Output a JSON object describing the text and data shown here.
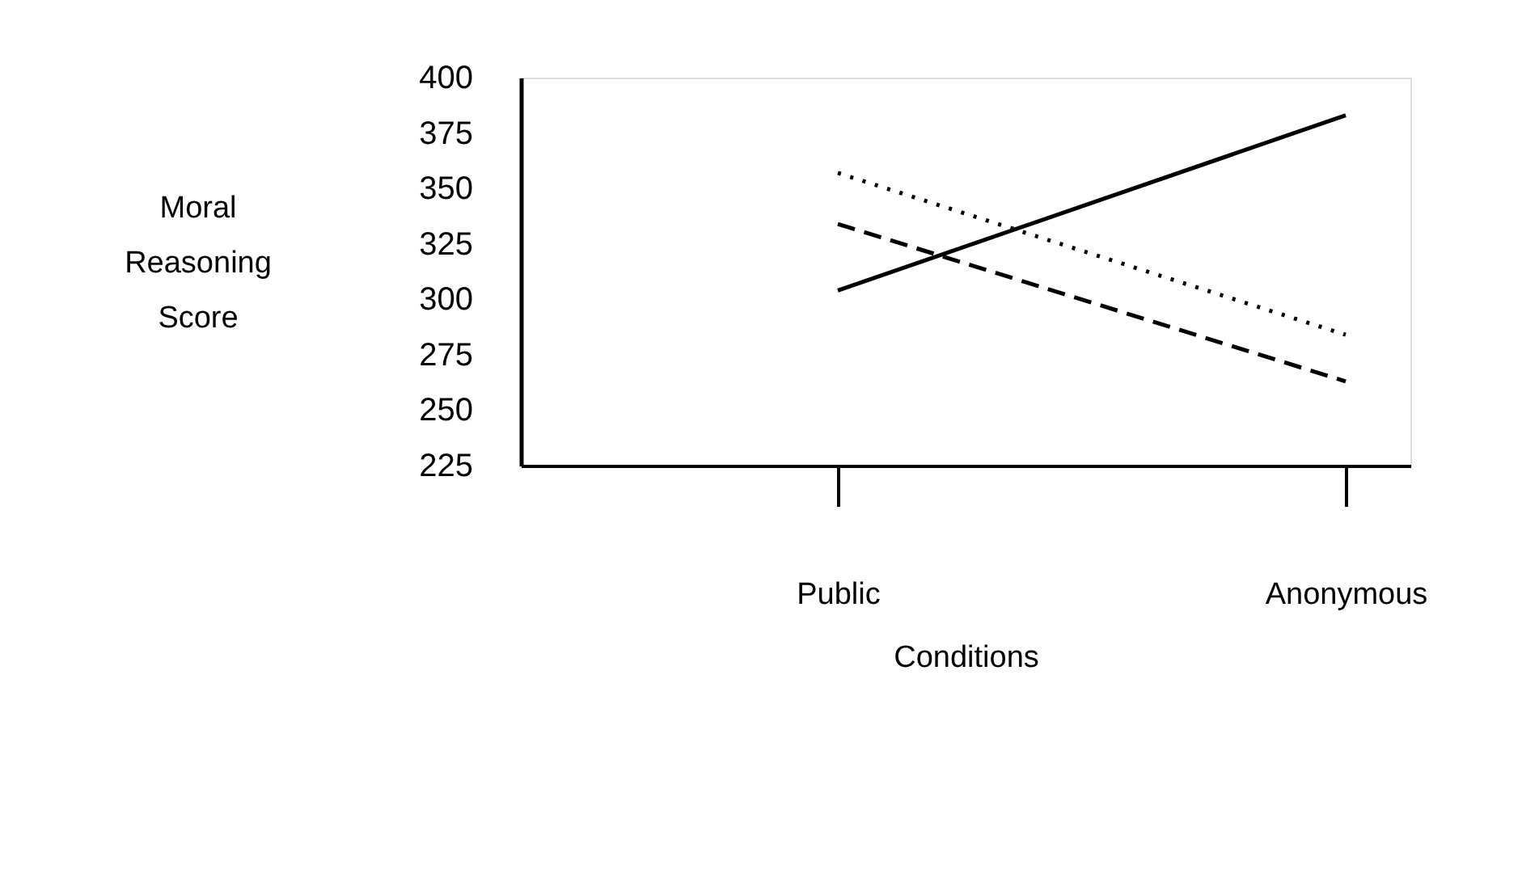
{
  "chart_data": {
    "type": "line",
    "categories": [
      "Public",
      "Anonymous"
    ],
    "xlabel": "Conditions",
    "ylabel": "Moral Reasoning Score",
    "ylim": [
      225,
      400
    ],
    "yticks": [
      225,
      250,
      275,
      300,
      325,
      350,
      375,
      400
    ],
    "grid": false,
    "series": [
      {
        "color": "#000000",
        "line_style": "solid",
        "values": [
          304,
          383
        ]
      },
      {
        "color": "#000000",
        "line_style": "dotted",
        "values": [
          357,
          284
        ]
      },
      {
        "color": "#000000",
        "line_style": "dashed",
        "values": [
          334,
          263
        ]
      }
    ]
  }
}
